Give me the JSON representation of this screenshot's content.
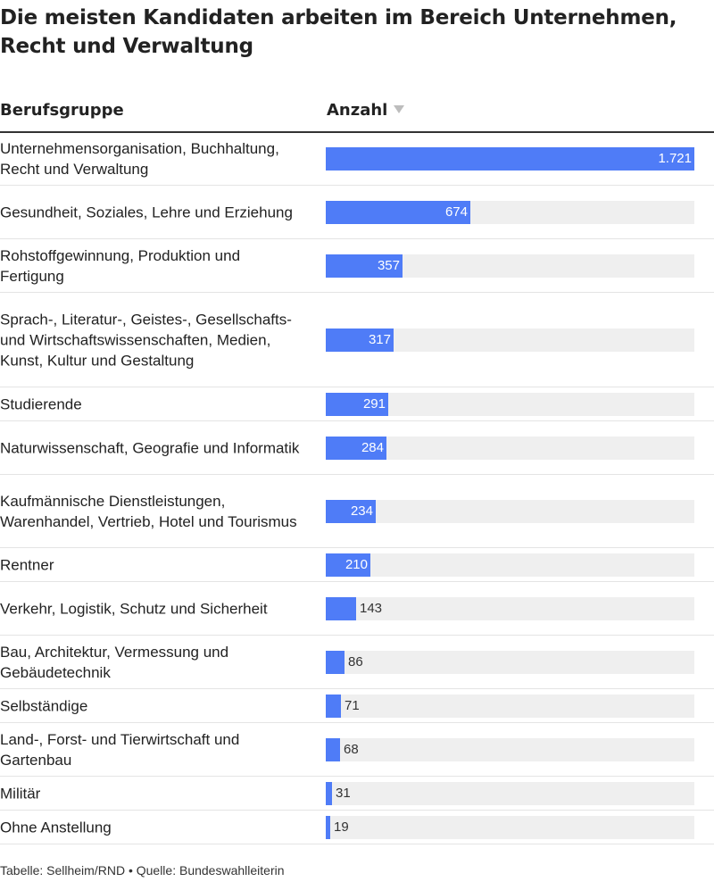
{
  "title": "Die meisten Kandidaten arbeiten im Bereich Unternehmen, Recht und Verwaltung",
  "header": {
    "category": "Berufsgruppe",
    "value": "Anzahl",
    "sort_icon": "sort-descending-icon"
  },
  "footer": "Tabelle: Sellheim/RND • Quelle: Bundeswahlleiterin",
  "colors": {
    "bar": "#4f7cf7",
    "track": "#efefef"
  },
  "chart_data": {
    "type": "bar",
    "orientation": "horizontal",
    "title": "Die meisten Kandidaten arbeiten im Bereich Unternehmen, Recht und Verwaltung",
    "xlabel": "Anzahl",
    "ylabel": "Berufsgruppe",
    "xlim": [
      0,
      1721
    ],
    "categories": [
      "Unternehmensorganisation, Buchhaltung, Recht und Verwaltung",
      "Gesundheit, Soziales, Lehre und Erziehung",
      "Rohstoffgewinnung, Produktion und Fertigung",
      "Sprach-, Literatur-, Geistes-, Gesellschafts- und Wirtschaftswissenschaften, Medien, Kunst, Kultur und Gestaltung",
      "Studierende",
      "Naturwissenschaft, Geografie und Informatik",
      "Kaufmännische Dienstleistungen, Warenhandel, Vertrieb, Hotel und Tourismus",
      "Rentner",
      "Verkehr, Logistik, Schutz und Sicherheit",
      "Bau, Architektur, Vermessung und Gebäudetechnik",
      "Selbständige",
      "Land-, Forst- und Tierwirtschaft und Gartenbau",
      "Militär",
      "Ohne Anstellung"
    ],
    "values": [
      1721,
      674,
      357,
      317,
      291,
      284,
      234,
      210,
      143,
      86,
      71,
      68,
      31,
      19
    ],
    "value_labels": [
      "1.721",
      "674",
      "357",
      "317",
      "291",
      "284",
      "234",
      "210",
      "143",
      "86",
      "71",
      "68",
      "31",
      "19"
    ]
  }
}
